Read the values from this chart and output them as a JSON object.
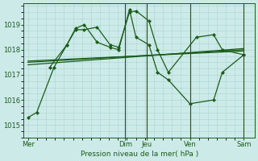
{
  "background_color": "#cceae8",
  "grid_color": "#aad4d2",
  "line_color": "#1a5c1a",
  "xlabel": "Pression niveau de la mer( hPa )",
  "ylim": [
    1014.6,
    1019.85
  ],
  "yticks": [
    1015,
    1016,
    1017,
    1018,
    1019
  ],
  "x_tick_labels": [
    "Mer",
    "Dim",
    "Jeu",
    "Ven",
    "Sam"
  ],
  "x_tick_positions": [
    0,
    0.45,
    0.55,
    0.75,
    1.0
  ],
  "vlines": [
    0.45,
    0.55,
    0.75,
    1.0
  ],
  "series": [
    {
      "x": [
        0.0,
        0.04,
        0.12,
        0.18,
        0.22,
        0.26,
        0.32,
        0.38,
        0.42,
        0.47,
        0.5,
        0.56,
        0.6,
        0.65,
        0.78,
        0.86,
        0.9,
        1.0
      ],
      "y": [
        1015.3,
        1015.5,
        1017.3,
        1018.2,
        1018.8,
        1018.8,
        1018.9,
        1018.2,
        1018.1,
        1019.5,
        1019.55,
        1019.15,
        1018.0,
        1017.1,
        1018.5,
        1018.6,
        1018.0,
        1017.8
      ]
    },
    {
      "x": [
        0.1,
        0.18,
        0.22,
        0.26,
        0.32,
        0.38,
        0.42,
        0.47,
        0.5,
        0.56,
        0.6,
        0.65,
        0.75,
        0.86,
        0.9,
        1.0
      ],
      "y": [
        1017.3,
        1018.2,
        1018.85,
        1019.0,
        1018.3,
        1018.1,
        1018.0,
        1019.6,
        1018.5,
        1018.2,
        1017.1,
        1016.8,
        1015.85,
        1016.0,
        1017.1,
        1017.8
      ]
    },
    {
      "x": [
        0.0,
        1.0
      ],
      "y": [
        1017.4,
        1018.05
      ]
    },
    {
      "x": [
        0.0,
        1.0
      ],
      "y": [
        1017.5,
        1018.0
      ]
    },
    {
      "x": [
        0.0,
        1.0
      ],
      "y": [
        1017.55,
        1017.95
      ]
    }
  ]
}
